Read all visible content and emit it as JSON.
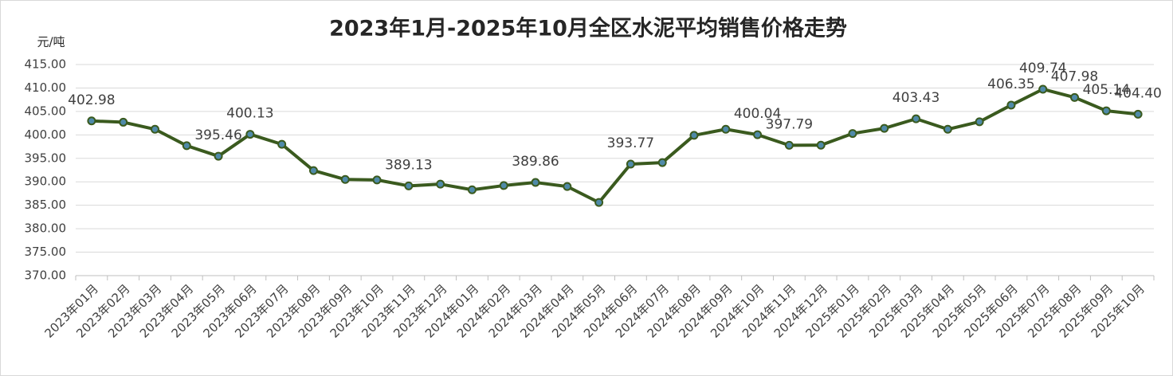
{
  "chart_data": {
    "type": "line",
    "title": "2023年1月-2025年10月全区水泥平均销售价格走势",
    "y_axis_label": "元/吨",
    "categories": [
      "2023年01月",
      "2023年02月",
      "2023年03月",
      "2023年04月",
      "2023年05月",
      "2023年06月",
      "2023年07月",
      "2023年08月",
      "2023年09月",
      "2023年10月",
      "2023年11月",
      "2023年12月",
      "2024年01月",
      "2024年02月",
      "2024年03月",
      "2024年04月",
      "2024年05月",
      "2024年06月",
      "2024年07月",
      "2024年08月",
      "2024年09月",
      "2024年10月",
      "2024年11月",
      "2024年12月",
      "2025年01月",
      "2025年02月",
      "2025年03月",
      "2025年04月",
      "2025年05月",
      "2025年06月",
      "2025年07月",
      "2025年08月",
      "2025年09月",
      "2025年10月"
    ],
    "series": [
      {
        "name": "全区水泥平均销售价格",
        "color": "#3a5a1e",
        "marker_color": "#4f8aa8",
        "values": [
          402.98,
          402.7,
          401.2,
          397.7,
          395.46,
          400.13,
          398.0,
          392.4,
          390.5,
          390.4,
          389.13,
          389.5,
          388.3,
          389.2,
          389.86,
          389.0,
          385.6,
          393.77,
          394.1,
          399.9,
          401.2,
          400.04,
          397.79,
          397.8,
          400.3,
          401.4,
          403.43,
          401.2,
          402.8,
          406.35,
          409.74,
          407.98,
          405.14,
          404.4
        ],
        "value_labels": [
          "402.98",
          null,
          null,
          null,
          "395.46",
          "400.13",
          null,
          null,
          null,
          null,
          "389.13",
          null,
          null,
          null,
          "389.86",
          null,
          null,
          "393.77",
          null,
          null,
          null,
          "400.04",
          "397.79",
          null,
          null,
          null,
          "403.43",
          null,
          null,
          "406.35",
          "409.74",
          "407.98",
          "405.14",
          "404.40"
        ]
      }
    ],
    "ylim": [
      370,
      415
    ],
    "yticks": [
      {
        "value": 370,
        "label": "370.00"
      },
      {
        "value": 375,
        "label": "375.00"
      },
      {
        "value": 380,
        "label": "380.00"
      },
      {
        "value": 385,
        "label": "385.00"
      },
      {
        "value": 390,
        "label": "390.00"
      },
      {
        "value": 395,
        "label": "395.00"
      },
      {
        "value": 400,
        "label": "400.00"
      },
      {
        "value": 405,
        "label": "405.00"
      },
      {
        "value": 410,
        "label": "410.00"
      },
      {
        "value": 415,
        "label": "415.00"
      }
    ],
    "grid": true
  }
}
